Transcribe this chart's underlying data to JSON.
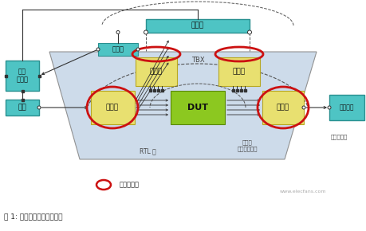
{
  "caption": "图 1: 基于事务的验证平台。",
  "legend_label": "非时序事务",
  "box_cyan": "#4ec4c4",
  "box_yellow_face": "#e8e070",
  "box_yellow_edge": "#b8a820",
  "box_green_face": "#8cc820",
  "box_green_edge": "#5a8a00",
  "box_cyan_edge": "#2a9090",
  "trap_face": "#c8d8e8",
  "trap_edge": "#888888",
  "red_color": "#cc1111",
  "line_color": "#333333",
  "dash_color": "#555555",
  "text_color": "#111111",
  "label_color": "#444444",
  "tbx_label": "TBX",
  "scoreboard_label": "记分板",
  "coverage_label": "覆盖率",
  "test_ctrl_label": "测试\n控制器",
  "stimulus_label": "激励",
  "driver_label": "驱动器",
  "monitor1_label": "监视器",
  "monitor2_label": "监视器",
  "dut_label": "DUT",
  "responder_label": "响应器",
  "slave_label": "从动装置",
  "rtl_label": "RTL 层",
  "transaction_label": "事务层\n（抽象桥梁）",
  "verify_label": "验证平台层",
  "website": "www.elecfans.com"
}
